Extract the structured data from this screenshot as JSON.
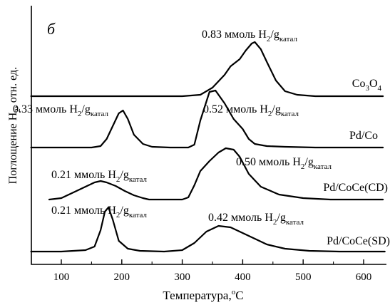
{
  "chart_data": {
    "type": "line",
    "panel_label": "б",
    "xlabel": {
      "main": "Температура,",
      "sup": "o",
      "tail": "C"
    },
    "ylabel": {
      "main": "Поглощение H",
      "sub": "2",
      "tail": ", отн. ед."
    },
    "xlim": [
      50,
      640
    ],
    "xticks": [
      100,
      200,
      300,
      400,
      500,
      600
    ],
    "series": [
      {
        "name": "Co3O4",
        "label": [
          {
            "t": "Co"
          },
          {
            "t": "3",
            "s": "sub"
          },
          {
            "t": "O"
          },
          {
            "t": "4",
            "s": "sub"
          }
        ],
        "x": [
          50,
          100,
          150,
          200,
          250,
          300,
          330,
          350,
          370,
          380,
          395,
          405,
          415,
          420,
          430,
          440,
          455,
          470,
          490,
          520,
          560,
          632
        ],
        "y": [
          0,
          0,
          0,
          0,
          0,
          0,
          0.02,
          0.12,
          0.3,
          0.42,
          0.52,
          0.64,
          0.74,
          0.76,
          0.66,
          0.48,
          0.22,
          0.07,
          0.02,
          0,
          0,
          0
        ]
      },
      {
        "name": "Pd/Co",
        "label": [
          {
            "t": "Pd/Co"
          }
        ],
        "x": [
          50,
          100,
          150,
          165,
          175,
          185,
          195,
          202,
          210,
          220,
          235,
          250,
          280,
          310,
          320,
          330,
          345,
          355,
          370,
          385,
          400,
          410,
          420,
          440,
          470,
          520,
          560,
          632
        ],
        "y": [
          0,
          0,
          0,
          0.02,
          0.12,
          0.3,
          0.48,
          0.52,
          0.4,
          0.18,
          0.05,
          0.01,
          0,
          0,
          0.04,
          0.38,
          0.78,
          0.8,
          0.62,
          0.4,
          0.26,
          0.12,
          0.05,
          0.02,
          0.01,
          0,
          0,
          0
        ]
      },
      {
        "name": "Pd/CoCe(CD)",
        "label": [
          {
            "t": "Pd/CoCe(CD)"
          }
        ],
        "x": [
          80,
          100,
          120,
          140,
          155,
          165,
          175,
          190,
          205,
          220,
          235,
          245,
          270,
          300,
          310,
          320,
          330,
          345,
          360,
          372,
          385,
          395,
          410,
          430,
          460,
          500,
          545,
          580,
          632
        ],
        "y": [
          0,
          0.02,
          0.1,
          0.18,
          0.24,
          0.26,
          0.24,
          0.19,
          0.12,
          0.06,
          0.02,
          0,
          0,
          0,
          0.03,
          0.2,
          0.4,
          0.54,
          0.66,
          0.72,
          0.7,
          0.6,
          0.36,
          0.18,
          0.07,
          0.02,
          0,
          0,
          0
        ]
      },
      {
        "name": "Pd/CoCe(SD)",
        "label": [
          {
            "t": "Pd/CoCe(SD)"
          }
        ],
        "x": [
          50,
          100,
          140,
          155,
          165,
          172,
          178,
          185,
          195,
          210,
          230,
          270,
          300,
          320,
          340,
          360,
          380,
          400,
          420,
          440,
          470,
          510,
          560,
          635
        ],
        "y": [
          0,
          0,
          0.02,
          0.07,
          0.3,
          0.56,
          0.62,
          0.45,
          0.15,
          0.04,
          0.01,
          0,
          0.02,
          0.12,
          0.28,
          0.36,
          0.34,
          0.26,
          0.18,
          0.1,
          0.04,
          0.01,
          0,
          0
        ]
      }
    ],
    "annotations": [
      {
        "value": "0.83",
        "text": " ммоль H",
        "sub": "2",
        "slash": "/g",
        "sub2": "катал"
      },
      {
        "value": "0.33",
        "text": " ммоль H",
        "sub": "2",
        "slash": "/g",
        "sub2": "катал"
      },
      {
        "value": "0.52",
        "text": " ммоль H",
        "sub": "2",
        "slash": "/g",
        "sub2": "катал"
      },
      {
        "value": "0.21",
        "text": " ммоль H",
        "sub": "2",
        "slash": "/g",
        "sub2": "катал"
      },
      {
        "value": "0.50",
        "text": " ммоль H",
        "sub": "2",
        "slash": "/g",
        "sub2": "катал"
      },
      {
        "value": "0.21",
        "text": " ммоль H",
        "sub": "2",
        "slash": "/g",
        "sub2": "катал"
      },
      {
        "value": "0.42",
        "text": " ммоль H",
        "sub": "2",
        "slash": "/g",
        "sub2": "катал"
      }
    ]
  }
}
